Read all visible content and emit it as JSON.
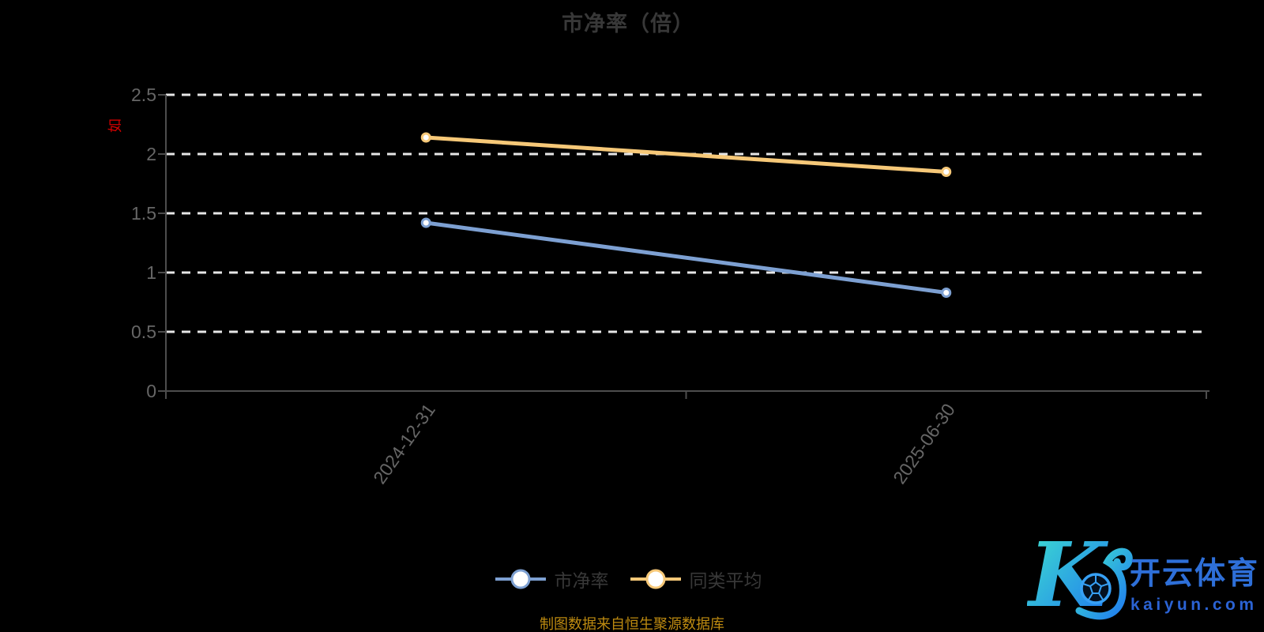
{
  "title": "市净率（倍）",
  "y_axis_name": "如",
  "source_note": "制图数据来自恒生聚源数据库",
  "colors": {
    "background": "#000000",
    "title_text": "#383838",
    "axis_label": "#666666",
    "axis_line": "#4d4d4d",
    "gridline": "#e6e6e6",
    "y_axis_name_red": "#d20000",
    "source_note_gold": "#bd8a10",
    "series_pbr_blue": "#7da0d2",
    "series_avg_orange": "#f6c878",
    "marker_fill": "#ffffff"
  },
  "chart_data": {
    "type": "line",
    "title": "市净率（倍）",
    "categories": [
      "2024-12-31",
      "2025-06-30"
    ],
    "series": [
      {
        "name": "市净率",
        "color": "#7da0d2",
        "values": [
          1.42,
          0.83
        ]
      },
      {
        "name": "同类平均",
        "color": "#f6c878",
        "values": [
          2.14,
          1.85
        ]
      }
    ],
    "ylim": [
      0,
      2.5
    ],
    "yticks": [
      0,
      0.5,
      1,
      1.5,
      2,
      2.5
    ],
    "xlabel": "",
    "ylabel": "如",
    "grid": true,
    "grid_style": "dashed-white",
    "legend_position": "bottom",
    "marker": "circle-white-fill",
    "x_label_rotation": -55
  },
  "legend": {
    "items": [
      {
        "label": "市净率",
        "color": "#7da0d2"
      },
      {
        "label": "同类平均",
        "color": "#f6c878"
      }
    ]
  },
  "logo": {
    "monogram": "K",
    "title": "开云体育",
    "domain": "kaiyun.com",
    "brand_blue": "#2e6fd8",
    "domain_blue": "#2b63d4",
    "gradient": [
      "#3fe3cd",
      "#1e75f2"
    ],
    "ball_line_blue": "#37a0f5"
  }
}
